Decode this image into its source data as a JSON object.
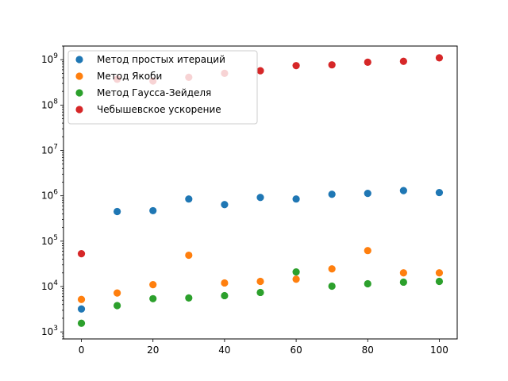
{
  "chart_data": {
    "type": "scatter",
    "title": "",
    "xlabel": "",
    "ylabel": "",
    "x_scale": "linear",
    "y_scale": "log",
    "xlim": [
      -5,
      105
    ],
    "ylim": [
      700,
      2000000000
    ],
    "x_ticks": [
      0,
      20,
      40,
      60,
      80,
      100
    ],
    "y_ticks": [
      {
        "value": 1000,
        "base": "10",
        "exp": "3"
      },
      {
        "value": 10000,
        "base": "10",
        "exp": "4"
      },
      {
        "value": 100000,
        "base": "10",
        "exp": "5"
      },
      {
        "value": 1000000,
        "base": "10",
        "exp": "6"
      },
      {
        "value": 10000000,
        "base": "10",
        "exp": "7"
      },
      {
        "value": 100000000,
        "base": "10",
        "exp": "8"
      },
      {
        "value": 1000000000,
        "base": "10",
        "exp": "9"
      }
    ],
    "grid": false,
    "legend_position": "top-left",
    "series": [
      {
        "name": "Метод простых итераций",
        "color": "#1f77b4",
        "x": [
          0,
          10,
          20,
          30,
          40,
          50,
          60,
          70,
          80,
          90,
          100
        ],
        "y": [
          3200,
          450000,
          470000,
          850000,
          640000,
          920000,
          850000,
          1080000,
          1130000,
          1300000,
          1180000
        ]
      },
      {
        "name": "Метод Якоби",
        "color": "#ff7f0e",
        "x": [
          0,
          10,
          20,
          30,
          40,
          50,
          60,
          70,
          80,
          90,
          100
        ],
        "y": [
          5200,
          7200,
          11000,
          49000,
          12000,
          13000,
          14500,
          24500,
          62000,
          20000,
          20000
        ]
      },
      {
        "name": "Метод Гаусса-Зейделя",
        "color": "#2ca02c",
        "x": [
          0,
          10,
          20,
          30,
          40,
          50,
          60,
          70,
          80,
          90,
          100
        ],
        "y": [
          1550,
          3800,
          5400,
          5600,
          6300,
          7400,
          21000,
          10200,
          11500,
          12500,
          13000
        ]
      },
      {
        "name": "Чебышевское ускорение",
        "color": "#d62728",
        "x": [
          0,
          10,
          20,
          30,
          40,
          50,
          60,
          70,
          80,
          90,
          100
        ],
        "y": [
          53000,
          370000000,
          340000000,
          410000000,
          500000000,
          570000000,
          740000000,
          770000000,
          880000000,
          920000000,
          1100000000
        ]
      }
    ]
  }
}
